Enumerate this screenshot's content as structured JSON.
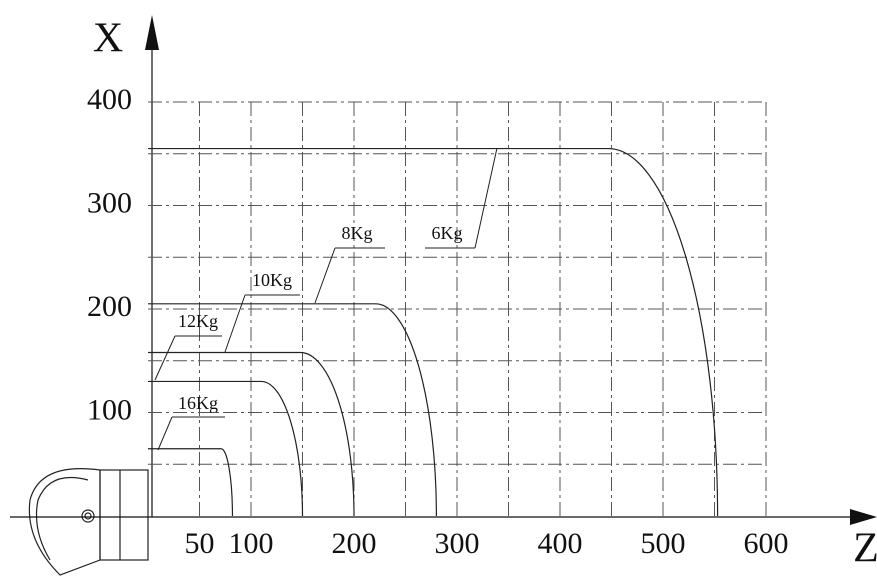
{
  "chart_data": {
    "type": "line",
    "x_axis_label": "Z",
    "y_axis_label": "X",
    "xlim": [
      0,
      600
    ],
    "ylim": [
      0,
      400
    ],
    "xticks": [
      50,
      100,
      200,
      300,
      400,
      500,
      600
    ],
    "yticks": [
      100,
      200,
      300,
      400
    ],
    "grid": true,
    "series": [
      {
        "name": "16Kg",
        "color": "#222222",
        "x": [
          0,
          71,
          82
        ],
        "values": [
          65,
          65,
          0
        ]
      },
      {
        "name": "12Kg",
        "color": "#222222",
        "x": [
          0,
          110,
          150
        ],
        "values": [
          130,
          130,
          0
        ]
      },
      {
        "name": "10Kg",
        "color": "#222222",
        "x": [
          0,
          148,
          200
        ],
        "values": [
          158,
          158,
          0
        ]
      },
      {
        "name": "8Kg",
        "color": "#222222",
        "x": [
          0,
          221,
          280
        ],
        "values": [
          205,
          205,
          0
        ]
      },
      {
        "name": "6Kg",
        "color": "#222222",
        "x": [
          0,
          447,
          553
        ],
        "values": [
          355,
          355,
          0
        ]
      }
    ]
  }
}
